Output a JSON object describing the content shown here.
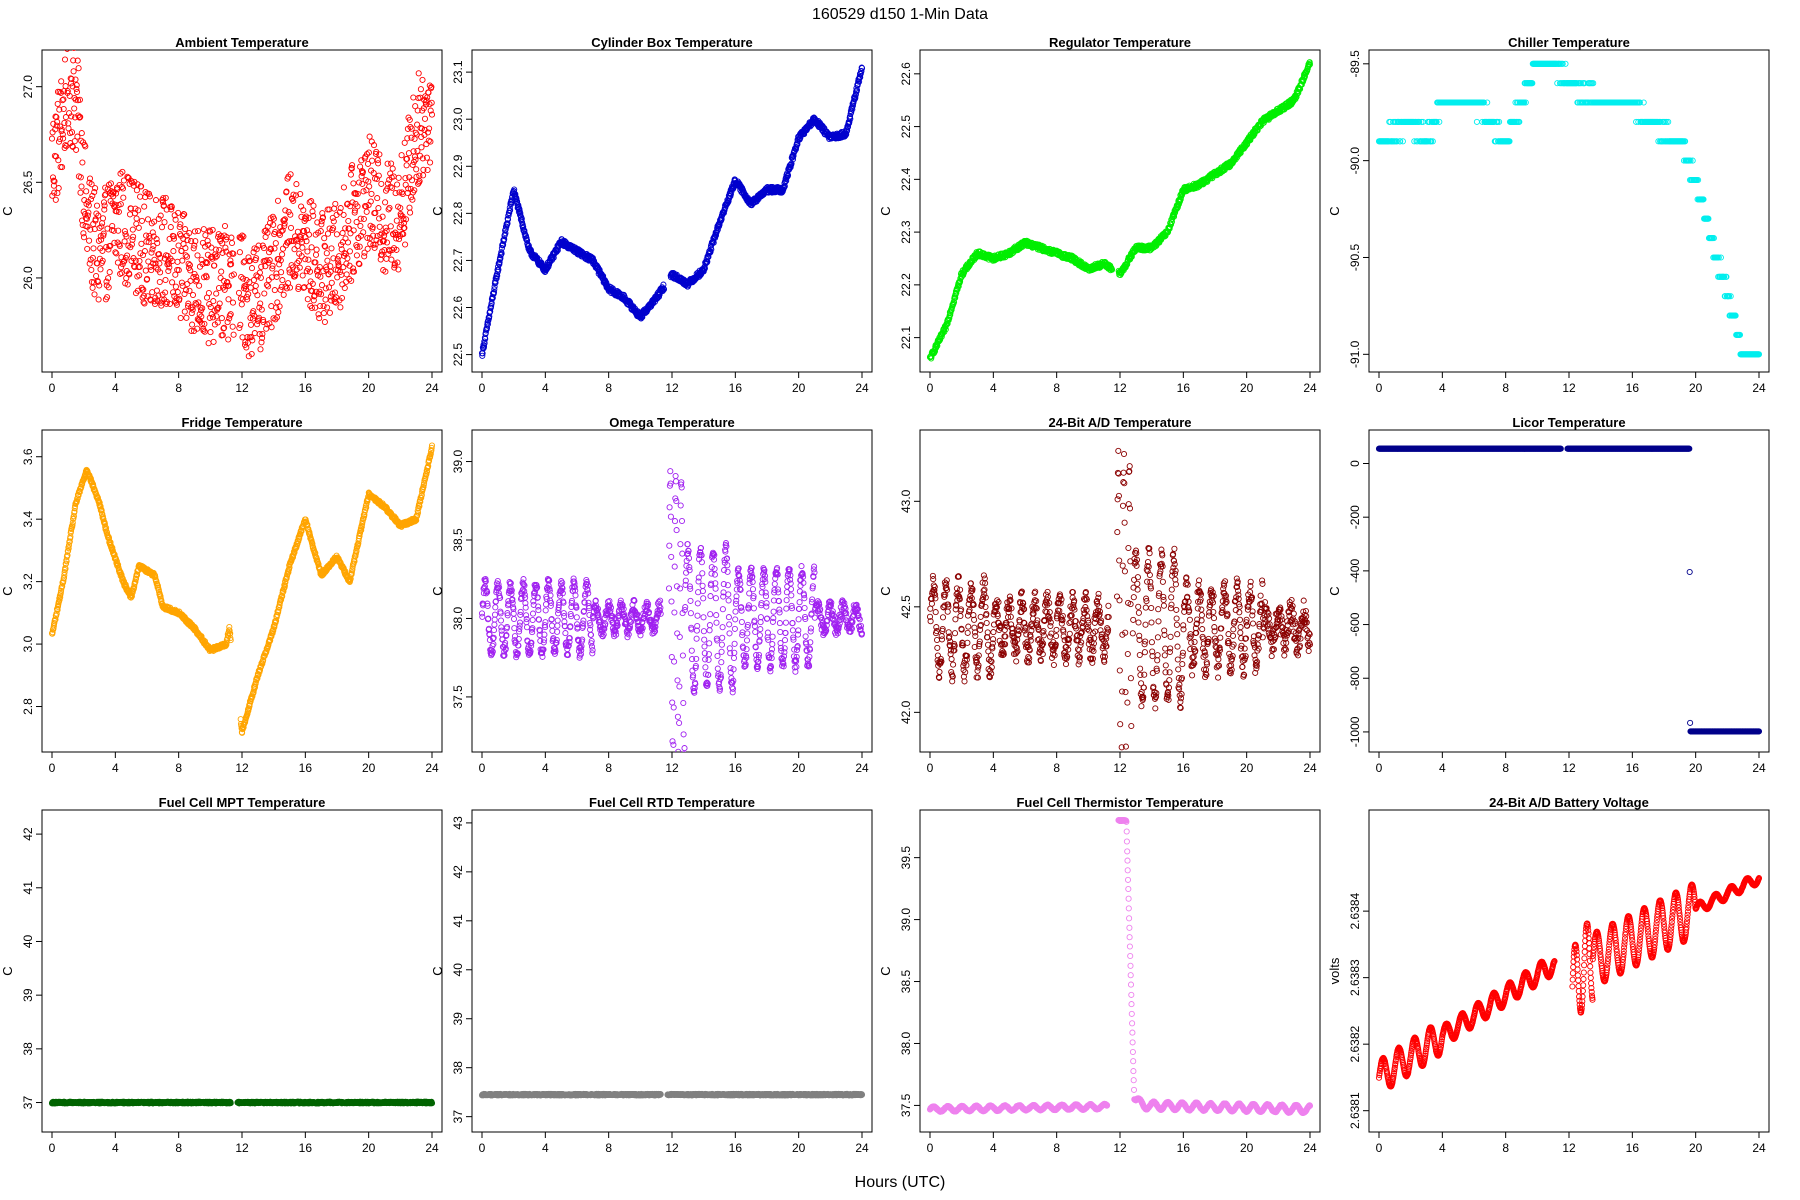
{
  "figure": {
    "title": "160529   d150   1-Min Data",
    "xlabel": "Hours (UTC)"
  },
  "chart_data": [
    {
      "type": "scatter",
      "title": "Ambient Temperature",
      "ylabel": "C",
      "color": "#ff0000",
      "xlim": [
        0,
        24
      ],
      "ylim": [
        25.55,
        27.15
      ],
      "xticks": [
        0,
        4,
        8,
        12,
        16,
        20,
        24
      ],
      "yticks": [
        "26.0",
        "26.5",
        "27.0"
      ],
      "gap": [
        11.5,
        11.8
      ],
      "trend": [
        [
          0,
          26.6
        ],
        [
          0.5,
          26.75
        ],
        [
          1,
          27.0
        ],
        [
          1.5,
          26.95
        ],
        [
          1.8,
          26.7
        ],
        [
          2.2,
          26.3
        ],
        [
          3,
          26.1
        ],
        [
          4,
          26.3
        ],
        [
          5,
          26.25
        ],
        [
          6,
          26.15
        ],
        [
          7,
          26.15
        ],
        [
          8,
          26.05
        ],
        [
          9,
          26.0
        ],
        [
          10,
          25.95
        ],
        [
          11,
          25.98
        ],
        [
          12,
          25.95
        ],
        [
          12.5,
          25.88
        ],
        [
          13.5,
          25.95
        ],
        [
          15,
          26.25
        ],
        [
          16,
          26.15
        ],
        [
          17,
          26.05
        ],
        [
          18,
          26.1
        ],
        [
          19,
          26.3
        ],
        [
          20,
          26.45
        ],
        [
          21,
          26.3
        ],
        [
          22,
          26.35
        ],
        [
          23,
          26.75
        ],
        [
          24,
          26.9
        ]
      ],
      "noise": 0.3,
      "n": 1200
    },
    {
      "type": "scatter",
      "title": "Cylinder Box Temperature",
      "ylabel": "C",
      "color": "#0000cd",
      "xlim": [
        0,
        24
      ],
      "ylim": [
        22.48,
        23.13
      ],
      "xticks": [
        0,
        4,
        8,
        12,
        16,
        20,
        24
      ],
      "yticks": [
        "22.5",
        "22.6",
        "22.7",
        "22.8",
        "22.9",
        "23.0",
        "23.1"
      ],
      "gap": [
        11.5,
        11.9
      ],
      "trend": [
        [
          0,
          22.5
        ],
        [
          1,
          22.68
        ],
        [
          2,
          22.85
        ],
        [
          3,
          22.72
        ],
        [
          4,
          22.68
        ],
        [
          5,
          22.74
        ],
        [
          6,
          22.72
        ],
        [
          7,
          22.7
        ],
        [
          8,
          22.64
        ],
        [
          9,
          22.62
        ],
        [
          10,
          22.58
        ],
        [
          11,
          22.62
        ],
        [
          12,
          22.67
        ],
        [
          13,
          22.65
        ],
        [
          14,
          22.68
        ],
        [
          15,
          22.78
        ],
        [
          16,
          22.87
        ],
        [
          17,
          22.82
        ],
        [
          18,
          22.85
        ],
        [
          19,
          22.85
        ],
        [
          20,
          22.96
        ],
        [
          21,
          23.0
        ],
        [
          22,
          22.96
        ],
        [
          23,
          22.97
        ],
        [
          24,
          23.11
        ]
      ],
      "noise": 0.006,
      "n": 1300
    },
    {
      "type": "scatter",
      "title": "Regulator Temperature",
      "ylabel": "C",
      "color": "#00ee00",
      "xlim": [
        0,
        24
      ],
      "ylim": [
        22.05,
        22.63
      ],
      "xticks": [
        0,
        4,
        8,
        12,
        16,
        20,
        24
      ],
      "yticks": [
        "22.1",
        "22.2",
        "22.3",
        "22.4",
        "22.5",
        "22.6"
      ],
      "gap": [
        11.5,
        11.9
      ],
      "trend": [
        [
          0,
          22.06
        ],
        [
          1,
          22.12
        ],
        [
          2,
          22.22
        ],
        [
          3,
          22.26
        ],
        [
          4,
          22.25
        ],
        [
          5,
          22.26
        ],
        [
          6,
          22.28
        ],
        [
          7,
          22.27
        ],
        [
          8,
          22.26
        ],
        [
          9,
          22.25
        ],
        [
          10,
          22.23
        ],
        [
          11,
          22.24
        ],
        [
          12,
          22.22
        ],
        [
          13,
          22.27
        ],
        [
          14,
          22.27
        ],
        [
          15,
          22.3
        ],
        [
          16,
          22.38
        ],
        [
          17,
          22.39
        ],
        [
          18,
          22.41
        ],
        [
          19,
          22.43
        ],
        [
          20,
          22.47
        ],
        [
          21,
          22.51
        ],
        [
          22,
          22.53
        ],
        [
          23,
          22.55
        ],
        [
          24,
          22.62
        ]
      ],
      "noise": 0.005,
      "n": 1300
    },
    {
      "type": "scatter",
      "title": "Chiller Temperature",
      "ylabel": "C",
      "color": "#00eeee",
      "xlim": [
        0,
        24
      ],
      "ylim": [
        -91.05,
        -89.47
      ],
      "xticks": [
        0,
        4,
        8,
        12,
        16,
        20,
        24
      ],
      "yticks": [
        "-91.0",
        "-90.5",
        "-90.0",
        "-89.5"
      ],
      "step": 0.1,
      "trend": [
        [
          0,
          -89.9
        ],
        [
          2,
          -89.8
        ],
        [
          3,
          -89.9
        ],
        [
          4,
          -89.7
        ],
        [
          6,
          -89.7
        ],
        [
          7,
          -89.8
        ],
        [
          8,
          -89.9
        ],
        [
          9,
          -89.7
        ],
        [
          10,
          -89.5
        ],
        [
          11,
          -89.5
        ],
        [
          12,
          -89.6
        ],
        [
          14,
          -89.7
        ],
        [
          16,
          -89.7
        ],
        [
          17,
          -89.8
        ],
        [
          19,
          -89.9
        ],
        [
          20,
          -90.1
        ],
        [
          21,
          -90.4
        ],
        [
          22,
          -90.7
        ],
        [
          23,
          -91.0
        ],
        [
          24,
          -91.0
        ]
      ],
      "noise": 0.04,
      "n": 700
    },
    {
      "type": "scatter",
      "title": "Fridge Temperature",
      "ylabel": "C",
      "color": "#ffa500",
      "xlim": [
        0,
        24
      ],
      "ylim": [
        2.68,
        3.66
      ],
      "xticks": [
        0,
        4,
        8,
        12,
        16,
        20,
        24
      ],
      "yticks": [
        "2.8",
        "3.0",
        "3.2",
        "3.4",
        "3.6"
      ],
      "gap": [
        11.3,
        11.9
      ],
      "trend": [
        [
          0,
          3.03
        ],
        [
          0.7,
          3.2
        ],
        [
          1.5,
          3.45
        ],
        [
          2.2,
          3.56
        ],
        [
          3,
          3.45
        ],
        [
          3.5,
          3.35
        ],
        [
          4.5,
          3.2
        ],
        [
          5,
          3.15
        ],
        [
          5.5,
          3.25
        ],
        [
          6.5,
          3.22
        ],
        [
          7,
          3.12
        ],
        [
          8,
          3.1
        ],
        [
          9,
          3.05
        ],
        [
          10,
          2.98
        ],
        [
          11,
          3.0
        ],
        [
          11.2,
          3.05
        ],
        [
          12,
          2.72
        ],
        [
          13,
          2.9
        ],
        [
          14,
          3.05
        ],
        [
          15,
          3.25
        ],
        [
          16,
          3.4
        ],
        [
          17,
          3.22
        ],
        [
          18,
          3.28
        ],
        [
          18.8,
          3.2
        ],
        [
          20,
          3.48
        ],
        [
          21,
          3.44
        ],
        [
          22,
          3.38
        ],
        [
          23,
          3.4
        ],
        [
          24,
          3.63
        ]
      ],
      "noise": 0.006,
      "n": 1300
    },
    {
      "type": "scatter",
      "title": "Omega Temperature",
      "ylabel": "C",
      "color": "#a020f0",
      "xlim": [
        0,
        24
      ],
      "ylim": [
        37.2,
        39.15
      ],
      "xticks": [
        0,
        4,
        8,
        12,
        16,
        20,
        24
      ],
      "yticks": [
        "37.5",
        "38.0",
        "38.5",
        "39.0"
      ],
      "gap": [
        11.3,
        11.8
      ],
      "trend": [
        [
          0,
          38.0
        ],
        [
          12,
          38.0
        ],
        [
          24,
          38.0
        ]
      ],
      "osc": [
        {
          "from": 0,
          "to": 7,
          "amp": 0.22,
          "period": 0.8
        },
        {
          "from": 7,
          "to": 11.3,
          "amp": 0.08,
          "period": 0.8
        },
        {
          "from": 11.8,
          "to": 12.8,
          "amp": 0.9,
          "period": 0.35
        },
        {
          "from": 12.8,
          "to": 16,
          "amp": 0.45,
          "period": 0.8
        },
        {
          "from": 16,
          "to": 21,
          "amp": 0.3,
          "period": 0.8
        },
        {
          "from": 21,
          "to": 24,
          "amp": 0.08,
          "period": 0.8
        }
      ],
      "noise": 0.04,
      "n": 1200
    },
    {
      "type": "scatter",
      "title": "24-Bit A/D Temperature",
      "ylabel": "C",
      "color": "#8b0000",
      "xlim": [
        0,
        24
      ],
      "ylim": [
        41.85,
        43.3
      ],
      "xticks": [
        0,
        4,
        8,
        12,
        16,
        20,
        24
      ],
      "yticks": [
        "42.0",
        "42.5",
        "43.0"
      ],
      "gap": [
        11.3,
        11.8
      ],
      "trend": [
        [
          0,
          42.4
        ],
        [
          12,
          42.4
        ],
        [
          24,
          42.4
        ]
      ],
      "osc": [
        {
          "from": 0,
          "to": 4,
          "amp": 0.2,
          "period": 0.8
        },
        {
          "from": 4,
          "to": 11.3,
          "amp": 0.12,
          "period": 0.8
        },
        {
          "from": 11.8,
          "to": 12.8,
          "amp": 0.8,
          "period": 0.35
        },
        {
          "from": 12.8,
          "to": 16,
          "amp": 0.35,
          "period": 0.8
        },
        {
          "from": 16,
          "to": 21,
          "amp": 0.18,
          "period": 0.8
        },
        {
          "from": 21,
          "to": 24,
          "amp": 0.08,
          "period": 0.8
        }
      ],
      "noise": 0.06,
      "n": 1200
    },
    {
      "type": "scatter",
      "title": "Licor Temperature",
      "ylabel": "C",
      "color": "#00008b",
      "xlim": [
        0,
        24
      ],
      "ylim": [
        -1045,
        95
      ],
      "xticks": [
        0,
        4,
        8,
        12,
        16,
        20,
        24
      ],
      "yticks": [
        "-1000",
        "-800",
        "-600",
        "-400",
        "-200",
        "0"
      ],
      "gap": [
        11.5,
        11.9
      ],
      "trend": [
        [
          0,
          55
        ],
        [
          19.6,
          55
        ],
        [
          19.65,
          -998
        ],
        [
          24,
          -998
        ]
      ],
      "noise": 0,
      "n": 900
    },
    {
      "type": "scatter",
      "title": "Fuel Cell MPT Temperature",
      "ylabel": "C",
      "color": "#006400",
      "xlim": [
        0,
        24
      ],
      "ylim": [
        36.6,
        42.3
      ],
      "xticks": [
        0,
        4,
        8,
        12,
        16,
        20,
        24
      ],
      "yticks": [
        "37",
        "38",
        "39",
        "40",
        "41",
        "42"
      ],
      "gap": [
        11.3,
        11.7
      ],
      "trend": [
        [
          0,
          37.0
        ],
        [
          24,
          37.0
        ]
      ],
      "noise": 0.015,
      "n": 1400
    },
    {
      "type": "scatter",
      "title": "Fuel Cell RTD Temperature",
      "ylabel": "C",
      "color": "#808080",
      "xlim": [
        0,
        24
      ],
      "ylim": [
        36.85,
        43.1
      ],
      "xticks": [
        0,
        4,
        8,
        12,
        16,
        20,
        24
      ],
      "yticks": [
        "37",
        "38",
        "39",
        "40",
        "41",
        "42",
        "43"
      ],
      "gap": [
        11.3,
        11.7
      ],
      "trend": [
        [
          0,
          37.45
        ],
        [
          24,
          37.45
        ]
      ],
      "noise": 0.015,
      "n": 1400
    },
    {
      "type": "scatter",
      "title": "Fuel Cell Thermistor Temperature",
      "ylabel": "C",
      "color": "#ee82ee",
      "xlim": [
        0,
        24
      ],
      "ylim": [
        37.35,
        39.82
      ],
      "xticks": [
        0,
        4,
        8,
        12,
        16,
        20,
        24
      ],
      "yticks": [
        "37.5",
        "38.0",
        "38.5",
        "39.0",
        "39.5"
      ],
      "gap": [
        11.2,
        11.9
      ],
      "trend": [
        [
          0,
          37.47
        ],
        [
          11.2,
          37.49
        ],
        [
          11.9,
          39.8
        ],
        [
          12.4,
          39.8
        ],
        [
          12.9,
          37.55
        ],
        [
          13.5,
          37.5
        ],
        [
          24,
          37.47
        ]
      ],
      "osc": [
        {
          "from": 0,
          "to": 11.2,
          "amp": 0.02,
          "period": 0.9
        },
        {
          "from": 13,
          "to": 24,
          "amp": 0.03,
          "period": 0.9
        }
      ],
      "noise": 0.004,
      "n": 1400
    },
    {
      "type": "scatter",
      "title": "24-Bit A/D Battery Voltage",
      "ylabel": "volts",
      "color": "#ff0000",
      "xlim": [
        0,
        24
      ],
      "ylim": [
        2.63808,
        2.63854
      ],
      "xticks": [
        0,
        4,
        8,
        12,
        16,
        20,
        24
      ],
      "yticks": [
        "2.6381",
        "2.6382",
        "2.6383",
        "2.6384"
      ],
      "gap": [
        11.1,
        12.2
      ],
      "trend": [
        [
          0,
          2.63815
        ],
        [
          11,
          2.63832
        ],
        [
          12.2,
          2.63828
        ],
        [
          13,
          2.63832
        ],
        [
          24,
          2.63845
        ]
      ],
      "osc": [
        {
          "from": 0,
          "to": 4,
          "amp": 2.5e-05,
          "period": 1.0
        },
        {
          "from": 4,
          "to": 11.1,
          "amp": 1.5e-05,
          "period": 1.0
        },
        {
          "from": 12.2,
          "to": 13.5,
          "amp": 6e-05,
          "period": 0.75
        },
        {
          "from": 13.5,
          "to": 20,
          "amp": 4e-05,
          "period": 1.0
        },
        {
          "from": 20,
          "to": 24,
          "amp": 8e-06,
          "period": 1.0
        }
      ],
      "noise": 5e-07,
      "n": 1300
    }
  ]
}
